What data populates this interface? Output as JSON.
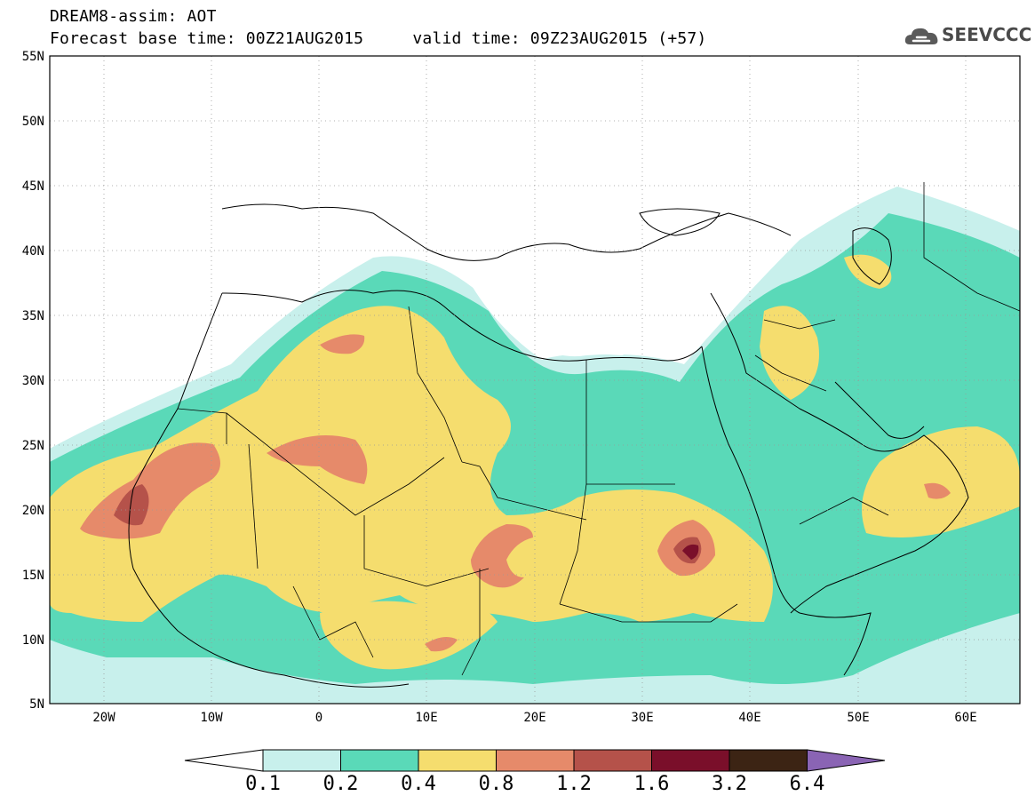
{
  "header": {
    "line1": "DREAM8-assim: AOT",
    "line2": "Forecast base time: 00Z21AUG2015     valid time: 09Z23AUG2015 (+57)"
  },
  "logo": {
    "text": "SEEVCCC",
    "icon": "cloud-logo-icon"
  },
  "map": {
    "projection": "lat-lon",
    "lon_range": [
      -25,
      65
    ],
    "lat_range": [
      5,
      55
    ],
    "lat_ticks": [
      "55N",
      "50N",
      "45N",
      "40N",
      "35N",
      "30N",
      "25N",
      "20N",
      "15N",
      "10N",
      "5N"
    ],
    "lon_ticks": [
      "20W",
      "10W",
      "0",
      "10E",
      "20E",
      "30E",
      "40E",
      "50E",
      "60E"
    ],
    "grid": "dotted",
    "field": "aerosol optical thickness"
  },
  "colorbar": {
    "levels": [
      "0.1",
      "0.2",
      "0.4",
      "0.8",
      "1.2",
      "1.6",
      "3.2",
      "6.4"
    ],
    "colors": [
      "#ffffff",
      "#c8f0ec",
      "#5ad9b8",
      "#f5dd6e",
      "#e68a6a",
      "#b5524a",
      "#7a0f2a",
      "#3c2414",
      "#8a64b4"
    ]
  }
}
